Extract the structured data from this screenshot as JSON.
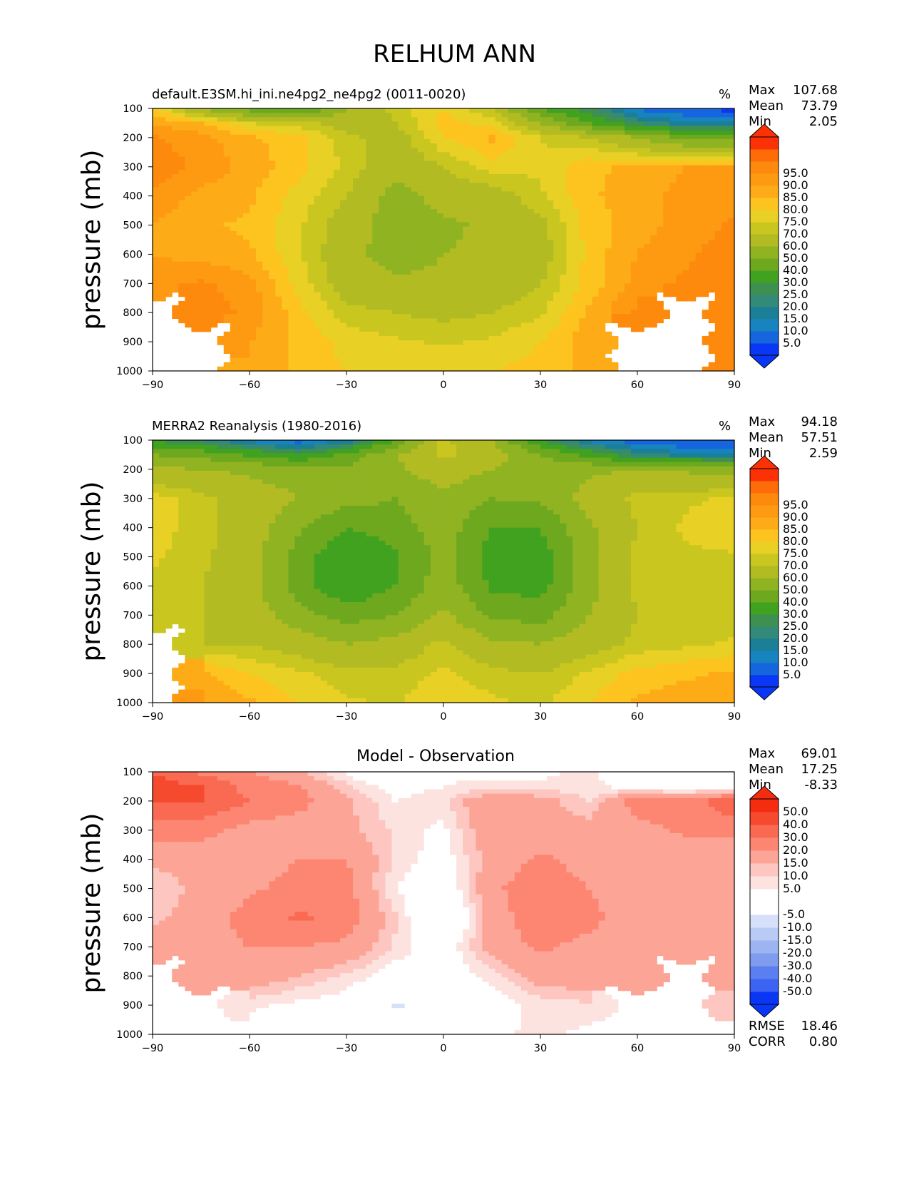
{
  "figure": {
    "title": "RELHUM ANN"
  },
  "colorbars": {
    "main": {
      "colors": [
        "#0a37f5",
        "#1566de",
        "#1783bf",
        "#1a7f97",
        "#338a78",
        "#3e9050",
        "#40a21f",
        "#6ea81f",
        "#90b322",
        "#b2bb22",
        "#cac620",
        "#e8d024",
        "#fdc41f",
        "#fdab17",
        "#fd9a12",
        "#fd8a0d",
        "#fd6c08",
        "#fc3106"
      ],
      "labels": [
        "5.0",
        "10.0",
        "15.0",
        "20.0",
        "25.0",
        "30.0",
        "40.0",
        "50.0",
        "60.0",
        "70.0",
        "75.0",
        "80.0",
        "85.0",
        "90.0",
        "95.0"
      ]
    },
    "diff": {
      "colors": [
        "#0a37f5",
        "#3d63f2",
        "#5b7ff0",
        "#7f9cef",
        "#9cb4f2",
        "#b9caf5",
        "#d6e1f9",
        "#ffffff",
        "#ffffff",
        "#fde3e0",
        "#fdc6c0",
        "#fca596",
        "#fc8672",
        "#fa6a52",
        "#f64a2e",
        "#f52d10"
      ],
      "labels": [
        "-50.0",
        "-40.0",
        "-30.0",
        "-20.0",
        "-15.0",
        "-10.0",
        "-5.0",
        "5.0",
        "10.0",
        "15.0",
        "20.0",
        "30.0",
        "40.0",
        "50.0"
      ]
    }
  },
  "panels": [
    {
      "title": "default.E3SM.hi_ini.ne4pg2_ne4pg2 (0011-0020)",
      "units": "%",
      "stats": {
        "max_label": "Max",
        "max": "107.68",
        "mean_label": "Mean",
        "mean": "73.79",
        "min_label": "Min",
        "min": "2.05"
      }
    },
    {
      "title": "MERRA2 Reanalysis (1980-2016)",
      "units": "%",
      "stats": {
        "max_label": "Max",
        "max": "94.18",
        "mean_label": "Mean",
        "mean": "57.51",
        "min_label": "Min",
        "min": "2.59"
      }
    },
    {
      "title": "Model - Observation",
      "units": "",
      "stats": {
        "max_label": "Max",
        "max": "69.01",
        "mean_label": "Mean",
        "mean": "17.25",
        "min_label": "Min",
        "min": "-8.33",
        "rmse_label": "RMSE",
        "rmse": "18.46",
        "corr_label": "CORR",
        "corr": "0.80"
      }
    }
  ],
  "chart_data": [
    {
      "type": "heatmap",
      "title": "default.E3SM.hi_ini.ne4pg2_ne4pg2 (0011-0020)",
      "ylabel": "pressure (mb)",
      "x_ticks": [
        -90,
        -60,
        -30,
        0,
        30,
        60,
        90
      ],
      "y_ticks": [
        100,
        200,
        300,
        400,
        500,
        600,
        700,
        800,
        900,
        1000
      ],
      "xlim": [
        -90,
        90
      ],
      "ylim": [
        1000,
        100
      ],
      "lat": [
        -90,
        -75,
        -60,
        -45,
        -30,
        -15,
        0,
        15,
        30,
        45,
        60,
        75,
        90
      ],
      "plev": [
        100,
        150,
        200,
        300,
        400,
        500,
        600,
        700,
        800,
        900,
        1000
      ],
      "values": [
        [
          80,
          60,
          45,
          35,
          60,
          72,
          80,
          70,
          40,
          25,
          8,
          4,
          3
        ],
        [
          90,
          85,
          75,
          72,
          66,
          70,
          82,
          78,
          60,
          40,
          24,
          16,
          14
        ],
        [
          96,
          92,
          86,
          82,
          72,
          66,
          80,
          86,
          75,
          70,
          60,
          48,
          45
        ],
        [
          98,
          94,
          88,
          82,
          74,
          64,
          70,
          78,
          76,
          84,
          86,
          90,
          90
        ],
        [
          94,
          88,
          86,
          78,
          70,
          56,
          64,
          66,
          74,
          84,
          88,
          92,
          92
        ],
        [
          90,
          86,
          84,
          76,
          66,
          54,
          58,
          62,
          68,
          82,
          88,
          92,
          96
        ],
        [
          90,
          88,
          86,
          76,
          64,
          55,
          60,
          62,
          66,
          82,
          90,
          94,
          98
        ],
        [
          92,
          96,
          92,
          78,
          66,
          62,
          62,
          64,
          70,
          82,
          92,
          96,
          99
        ],
        [
          null,
          98,
          94,
          82,
          72,
          70,
          68,
          70,
          74,
          86,
          96,
          null,
          99
        ],
        [
          null,
          null,
          90,
          84,
          78,
          76,
          74,
          76,
          80,
          88,
          null,
          null,
          99
        ],
        [
          null,
          null,
          88,
          84,
          80,
          80,
          80,
          80,
          82,
          86,
          null,
          null,
          99
        ]
      ],
      "levels": [
        5,
        10,
        15,
        20,
        25,
        30,
        40,
        50,
        60,
        70,
        75,
        80,
        85,
        90,
        95
      ]
    },
    {
      "type": "heatmap",
      "title": "MERRA2 Reanalysis (1980-2016)",
      "ylabel": "pressure (mb)",
      "x_ticks": [
        -90,
        -60,
        -30,
        0,
        30,
        60,
        90
      ],
      "y_ticks": [
        100,
        200,
        300,
        400,
        500,
        600,
        700,
        800,
        900,
        1000
      ],
      "xlim": [
        -90,
        90
      ],
      "ylim": [
        1000,
        100
      ],
      "lat": [
        -90,
        -75,
        -60,
        -45,
        -30,
        -15,
        0,
        15,
        30,
        45,
        60,
        75,
        90
      ],
      "plev": [
        100,
        150,
        200,
        300,
        400,
        500,
        600,
        700,
        800,
        900,
        1000
      ],
      "values": [
        [
          28,
          22,
          12,
          6,
          14,
          40,
          72,
          60,
          30,
          12,
          6,
          4,
          4
        ],
        [
          50,
          46,
          38,
          30,
          42,
          60,
          72,
          66,
          50,
          36,
          22,
          16,
          14
        ],
        [
          62,
          60,
          58,
          55,
          52,
          58,
          66,
          60,
          55,
          58,
          60,
          58,
          56
        ],
        [
          78,
          72,
          66,
          60,
          54,
          50,
          58,
          50,
          52,
          64,
          72,
          74,
          76
        ],
        [
          78,
          72,
          66,
          52,
          40,
          45,
          56,
          40,
          40,
          58,
          70,
          76,
          80
        ],
        [
          76,
          72,
          64,
          46,
          30,
          38,
          54,
          35,
          35,
          56,
          72,
          74,
          74
        ],
        [
          74,
          70,
          64,
          46,
          30,
          40,
          56,
          38,
          36,
          56,
          72,
          72,
          72
        ],
        [
          70,
          70,
          66,
          54,
          46,
          50,
          62,
          48,
          46,
          60,
          70,
          72,
          72
        ],
        [
          null,
          70,
          70,
          66,
          60,
          64,
          72,
          62,
          60,
          66,
          72,
          74,
          76
        ],
        [
          null,
          86,
          80,
          76,
          72,
          72,
          76,
          72,
          70,
          76,
          82,
          84,
          86
        ],
        [
          null,
          90,
          86,
          80,
          76,
          74,
          80,
          76,
          74,
          80,
          86,
          88,
          90
        ]
      ],
      "levels": [
        5,
        10,
        15,
        20,
        25,
        30,
        40,
        50,
        60,
        70,
        75,
        80,
        85,
        90,
        95
      ]
    },
    {
      "type": "heatmap",
      "title": "Model - Observation",
      "ylabel": "pressure (mb)",
      "x_ticks": [
        -90,
        -60,
        -30,
        0,
        30,
        60,
        90
      ],
      "y_ticks": [
        100,
        200,
        300,
        400,
        500,
        600,
        700,
        800,
        900,
        1000
      ],
      "xlim": [
        -90,
        90
      ],
      "ylim": [
        1000,
        100
      ],
      "lat": [
        -90,
        -75,
        -60,
        -45,
        -30,
        -15,
        0,
        15,
        30,
        45,
        60,
        75,
        90
      ],
      "plev": [
        100,
        150,
        200,
        300,
        400,
        500,
        600,
        700,
        800,
        900,
        1000
      ],
      "values": [
        [
          50,
          38,
          30,
          20,
          8,
          -4,
          8,
          8,
          8,
          12,
          2,
          0,
          0
        ],
        [
          54,
          50,
          36,
          32,
          16,
          6,
          10,
          12,
          12,
          12,
          6,
          2,
          2
        ],
        [
          52,
          50,
          40,
          34,
          22,
          10,
          14,
          28,
          24,
          14,
          36,
          36,
          48
        ],
        [
          34,
          34,
          26,
          24,
          22,
          14,
          8,
          28,
          22,
          24,
          26,
          32,
          34
        ],
        [
          22,
          22,
          24,
          30,
          30,
          14,
          6,
          24,
          32,
          26,
          20,
          22,
          20
        ],
        [
          16,
          22,
          28,
          34,
          34,
          10,
          2,
          28,
          36,
          30,
          20,
          22,
          22
        ],
        [
          18,
          24,
          34,
          42,
          36,
          16,
          -6,
          24,
          38,
          34,
          22,
          24,
          26
        ],
        [
          24,
          26,
          30,
          30,
          28,
          14,
          4,
          24,
          32,
          26,
          22,
          24,
          26
        ],
        [
          null,
          26,
          26,
          20,
          14,
          6,
          4,
          12,
          24,
          26,
          24,
          null,
          26
        ],
        [
          null,
          null,
          12,
          8,
          6,
          -6,
          -2,
          6,
          12,
          14,
          null,
          null,
          16
        ],
        [
          null,
          null,
          4,
          4,
          4,
          4,
          4,
          8,
          12,
          8,
          null,
          null,
          8
        ]
      ],
      "levels": [
        -50,
        -40,
        -30,
        -20,
        -15,
        -10,
        -5,
        5,
        10,
        15,
        20,
        30,
        40,
        50
      ]
    }
  ]
}
